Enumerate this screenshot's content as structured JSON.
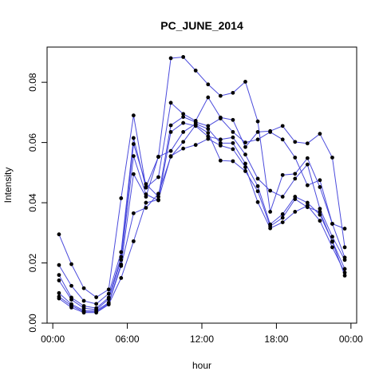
{
  "chart_data": {
    "type": "line",
    "title": "PC_JUNE_2014",
    "xlabel": "hour",
    "ylabel": "Intensity",
    "x_ticks": [
      "00:00",
      "06:00",
      "12:00",
      "18:00",
      "00:00"
    ],
    "x_tick_hours": [
      0,
      6,
      12,
      18,
      24
    ],
    "y_ticks": [
      "0.00",
      "0.02",
      "0.04",
      "0.06",
      "0.08"
    ],
    "y_tick_values": [
      0,
      0.02,
      0.04,
      0.06,
      0.08
    ],
    "xlim": [
      -0.46,
      24.46
    ],
    "ylim": [
      0.0,
      0.0917
    ],
    "grid": false,
    "line_color": "#4b4bdc",
    "point_color": "#000000",
    "x": [
      0.5,
      1.5,
      2.5,
      3.5,
      4.5,
      5.5,
      6.5,
      7.5,
      8.5,
      9.5,
      10.5,
      11.5,
      12.5,
      13.5,
      14.5,
      15.5,
      16.5,
      17.5,
      18.5,
      19.5,
      20.5,
      21.5,
      22.5,
      23.5
    ],
    "series": [
      {
        "values": [
          0.0295,
          0.0196,
          0.0116,
          0.0086,
          0.0112,
          0.0415,
          0.069,
          0.0453,
          0.0552,
          0.088,
          0.0884,
          0.0839,
          0.0793,
          0.0755,
          0.0765,
          0.0802,
          0.067,
          0.037,
          0.0492,
          0.0496,
          0.0548,
          0.0452,
          0.033,
          0.0314
        ]
      },
      {
        "values": [
          0.0193,
          0.0124,
          0.0074,
          0.0064,
          0.0098,
          0.0236,
          0.0615,
          0.045,
          0.0485,
          0.0732,
          0.0695,
          0.0672,
          0.075,
          0.0683,
          0.0675,
          0.0585,
          0.0635,
          0.0638,
          0.0655,
          0.0602,
          0.0597,
          0.0629,
          0.055,
          0.0252
        ]
      },
      {
        "values": [
          0.016,
          0.0085,
          0.0057,
          0.005,
          0.0085,
          0.022,
          0.0595,
          0.0462,
          0.042,
          0.0657,
          0.0685,
          0.0668,
          0.0655,
          0.068,
          0.0635,
          0.06,
          0.061,
          0.0635,
          0.061,
          0.055,
          0.0458,
          0.0475,
          0.033,
          0.0218
        ]
      },
      {
        "values": [
          0.0142,
          0.0078,
          0.005,
          0.0045,
          0.008,
          0.021,
          0.0555,
          0.0428,
          0.0408,
          0.0635,
          0.0665,
          0.0655,
          0.062,
          0.061,
          0.0617,
          0.056,
          0.048,
          0.044,
          0.042,
          0.048,
          0.0527,
          0.038,
          0.0287,
          0.021
        ]
      },
      {
        "values": [
          0.01,
          0.0063,
          0.0042,
          0.0042,
          0.0068,
          0.0195,
          0.0495,
          0.042,
          0.0553,
          0.0572,
          0.0635,
          0.0662,
          0.0645,
          0.0598,
          0.0598,
          0.053,
          0.0455,
          0.0328,
          0.0362,
          0.042,
          0.04,
          0.036,
          0.0272,
          0.018
        ]
      },
      {
        "values": [
          0.0088,
          0.0058,
          0.0038,
          0.0038,
          0.0065,
          0.019,
          0.0365,
          0.0383,
          0.043,
          0.0553,
          0.0602,
          0.0658,
          0.0632,
          0.054,
          0.0538,
          0.0505,
          0.0438,
          0.0322,
          0.035,
          0.0412,
          0.0385,
          0.037,
          0.027,
          0.0158
        ]
      },
      {
        "values": [
          0.0082,
          0.0052,
          0.0035,
          0.0035,
          0.0062,
          0.015,
          0.0272,
          0.04,
          0.041,
          0.0555,
          0.058,
          0.0592,
          0.0612,
          0.059,
          0.0578,
          0.0518,
          0.0402,
          0.0315,
          0.0335,
          0.037,
          0.039,
          0.034,
          0.0252,
          0.0168
        ]
      }
    ]
  }
}
